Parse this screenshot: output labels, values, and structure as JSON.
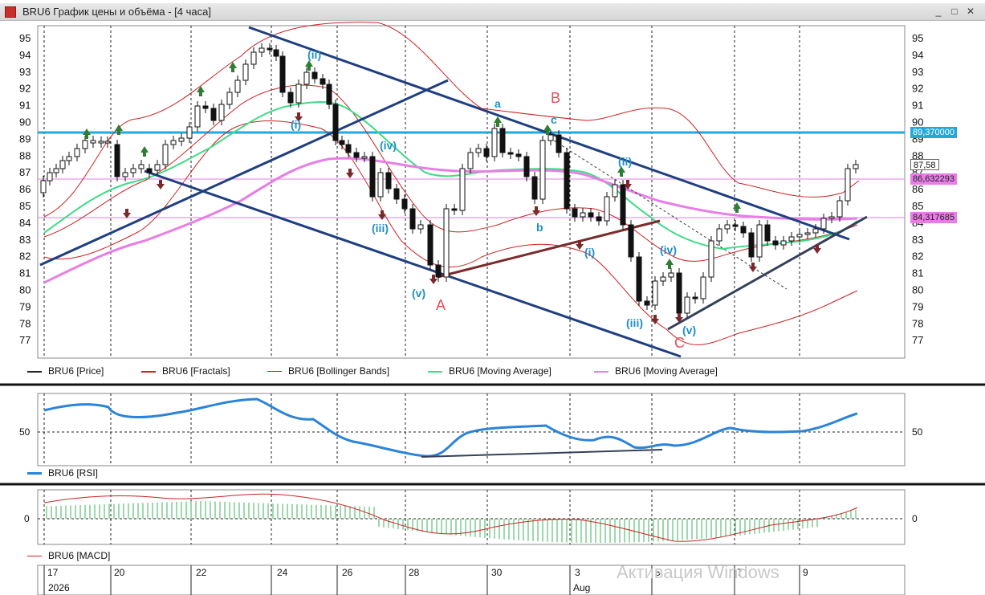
{
  "window": {
    "title": "BRU6 График цены и объёма - [4 часа]",
    "buttons": [
      "_",
      "□",
      "✕"
    ]
  },
  "price_axis": [
    "95",
    "94",
    "93",
    "92",
    "91",
    "90",
    "89",
    "88",
    "87",
    "86",
    "85",
    "84",
    "83",
    "82",
    "81",
    "80",
    "79",
    "78",
    "77"
  ],
  "price_tags": [
    {
      "text": "89,370000",
      "color": "#24a8d8"
    },
    {
      "text": "87,58",
      "color": "#ffffff"
    },
    {
      "text": "86,632293",
      "color": "#e67ee6"
    },
    {
      "text": "84,317685",
      "color": "#e67ee6"
    }
  ],
  "main_legend": [
    {
      "label": "BRU6 [Price]",
      "color": "#222222"
    },
    {
      "label": "BRU6 [Fractals]",
      "color": "#cc2222"
    },
    {
      "label": "BRU6 [Bollinger Bands]",
      "color": "#cc2222"
    },
    {
      "label": "BRU6 [Moving Average]",
      "color": "#3ddc84"
    },
    {
      "label": "BRU6 [Moving Average]",
      "color": "#e67ee6"
    }
  ],
  "wave_labels": [
    "(ii)",
    "(i)",
    "(iv)",
    "(iii)",
    "(v)",
    "a",
    "b",
    "c",
    "(ii)",
    "(i)",
    "(iv)",
    "(iii)",
    "(v)"
  ],
  "big_labels": [
    "A",
    "B",
    "C"
  ],
  "rsi": {
    "legend": "BRU6 [RSI]",
    "level": "50"
  },
  "macd": {
    "legend": "BRU6 [MACD]",
    "level": "0"
  },
  "dates": [
    "17",
    "20",
    "22",
    "24",
    "26",
    "28",
    "30",
    "3",
    "5",
    "7",
    "9"
  ],
  "date_year": "2026",
  "date_month": "Aug",
  "watermark": "Активация Windows",
  "colors": {
    "channel": "#1f3f80",
    "trend_red": "#7a2a2a",
    "level_blue": "#24a8d8",
    "level_pink": "#e67ee6"
  }
}
